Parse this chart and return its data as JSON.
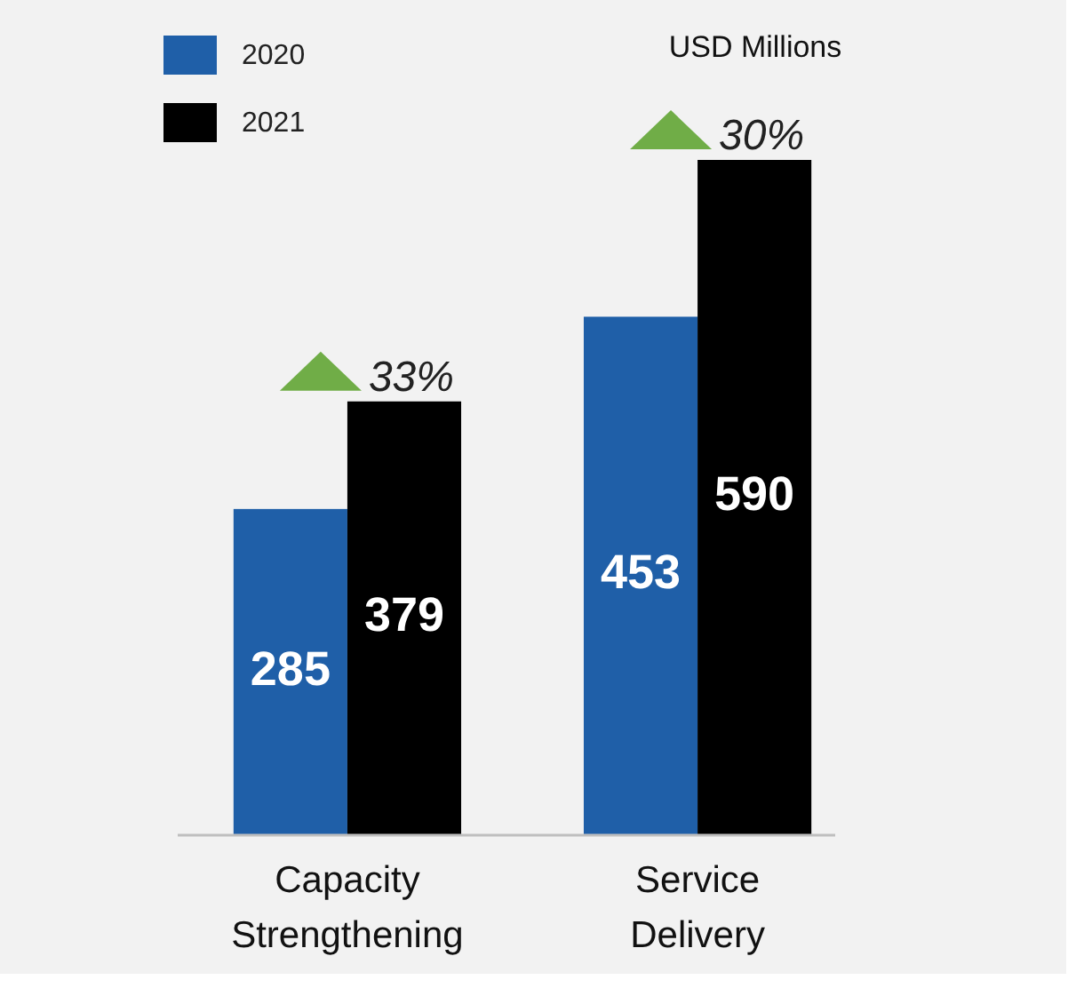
{
  "chart_data": {
    "type": "bar",
    "ylabel": "USD Millions",
    "categories": [
      "Capacity Strengthening",
      "Service Delivery"
    ],
    "series": [
      {
        "name": "2020",
        "color": "#1f5fa8",
        "values": [
          285,
          453
        ]
      },
      {
        "name": "2021",
        "color": "#000000",
        "values": [
          379,
          590
        ]
      }
    ],
    "data_labels": true,
    "legend": "top left",
    "annotations": [
      {
        "text": "33%",
        "x": "Capacity Strengthening",
        "y": 379
      },
      {
        "text": "30%",
        "x": "Service Delivery",
        "y": 590
      }
    ]
  }
}
